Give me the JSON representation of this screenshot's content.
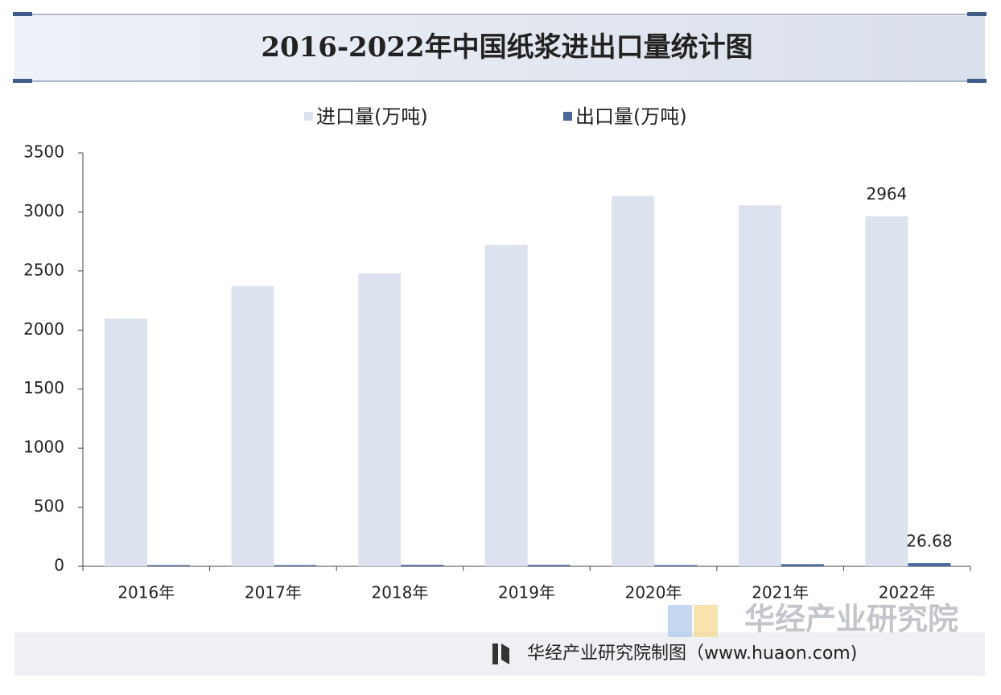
{
  "chart_data": {
    "type": "bar",
    "title": "2016-2022年中国纸浆进出口量统计图",
    "categories": [
      "2016年",
      "2017年",
      "2018年",
      "2019年",
      "2020年",
      "2021年",
      "2022年"
    ],
    "series": [
      {
        "name": "进口量(万吨)",
        "color": "#dde3ee",
        "values": [
          2097,
          2372,
          2479,
          2720,
          3135,
          3055,
          2964
        ]
      },
      {
        "name": "出口量(万吨)",
        "color": "#4a6a9a",
        "values": [
          10,
          10,
          12,
          12,
          10,
          18,
          26.68
        ]
      }
    ],
    "ylim": [
      0,
      3500
    ],
    "yticks": [
      0,
      500,
      1000,
      1500,
      2000,
      2500,
      3000,
      3500
    ],
    "grid": false,
    "legend": "top",
    "brand": "华经产业研究院",
    "source": "华经产业研究院制图（www.huaon.com)"
  }
}
